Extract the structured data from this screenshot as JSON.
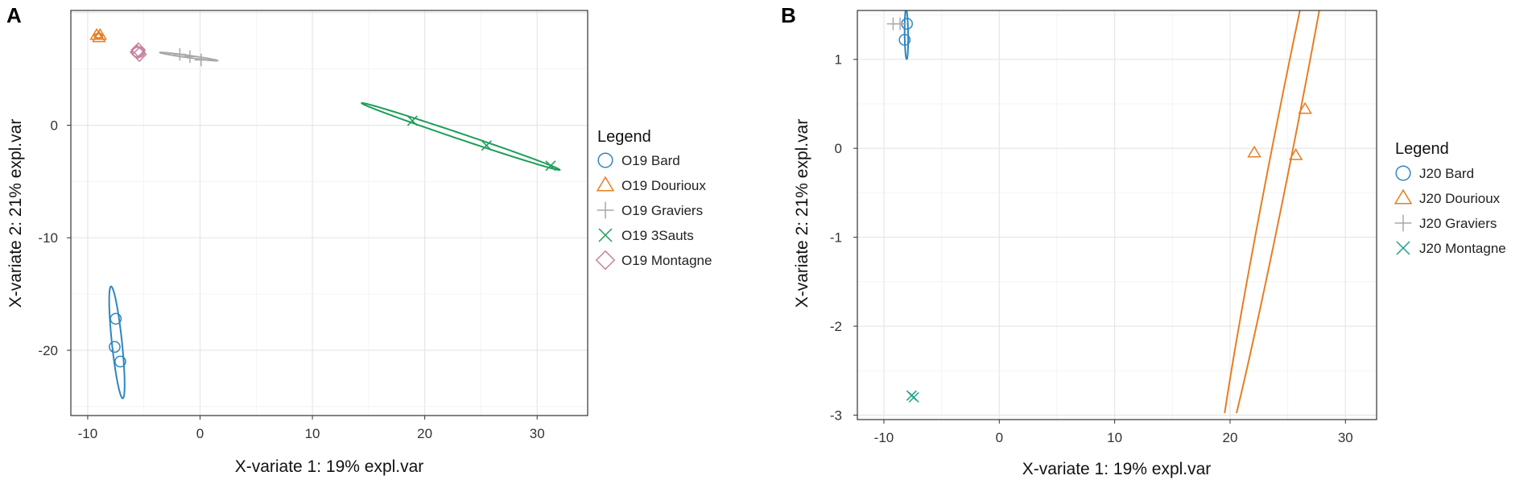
{
  "chart_data": [
    {
      "type": "scatter",
      "panel_label": "A",
      "xlabel": "X-variate 1: 19% expl.var",
      "ylabel": "X-variate 2: 21% expl.var",
      "xlim": [
        -11.5,
        34.5
      ],
      "ylim": [
        -25.8,
        10.2
      ],
      "xticks": [
        -10,
        0,
        10,
        20,
        30
      ],
      "yticks": [
        -20,
        -10,
        0
      ],
      "grid": true,
      "legend_title": "Legend",
      "legend_position": "right",
      "series": [
        {
          "name": "O19 Bard",
          "color": "#2e86c1",
          "marker": "circle",
          "points": [
            [
              -7.5,
              -17.2
            ],
            [
              -7.6,
              -19.7
            ],
            [
              -7.1,
              -21.0
            ]
          ],
          "ellipse": {
            "cx": -7.4,
            "cy": -19.3,
            "rx": 5.0,
            "ry": 0.45,
            "angle_deg": -84
          }
        },
        {
          "name": "O19 Dourioux",
          "color": "#e67e22",
          "marker": "triangle",
          "points": [
            [
              -9.2,
              8.0
            ],
            [
              -9.0,
              7.8
            ],
            [
              -8.9,
              8.0
            ]
          ],
          "ellipse": {
            "cx": -9.05,
            "cy": 7.95,
            "rx": 0.35,
            "ry": 0.2,
            "angle_deg": 0
          }
        },
        {
          "name": "O19 Graviers",
          "color": "#a9a9a9",
          "marker": "plus",
          "points": [
            [
              -1.8,
              6.3
            ],
            [
              -0.9,
              6.1
            ],
            [
              0.1,
              5.8
            ]
          ],
          "ellipse": {
            "cx": -1.0,
            "cy": 6.1,
            "rx": 2.6,
            "ry": 0.1,
            "angle_deg": -8
          }
        },
        {
          "name": "O19 3Sauts",
          "color": "#1e9e5a",
          "marker": "x",
          "points": [
            [
              18.9,
              0.4
            ],
            [
              25.5,
              -1.8
            ],
            [
              31.2,
              -3.6
            ]
          ],
          "ellipse": {
            "cx": 23.2,
            "cy": -1.0,
            "rx": 9.3,
            "ry": 0.26,
            "angle_deg": -18.6
          }
        },
        {
          "name": "O19 Montagne",
          "color": "#c980a0",
          "marker": "diamond",
          "points": [
            [
              -5.6,
              6.5
            ],
            [
              -5.4,
              6.3
            ],
            [
              -5.5,
              6.7
            ]
          ],
          "ellipse": {
            "cx": -5.5,
            "cy": 6.5,
            "rx": 0.55,
            "ry": 0.45,
            "angle_deg": 0
          }
        }
      ]
    },
    {
      "type": "scatter",
      "panel_label": "B",
      "xlabel": "X-variate 1: 19% expl.var",
      "ylabel": "X-variate 2: 21% expl.var",
      "xlim": [
        -12.3,
        32.7
      ],
      "ylim": [
        -3.05,
        1.55
      ],
      "xticks": [
        -10,
        0,
        10,
        20,
        30
      ],
      "yticks": [
        -3,
        -2,
        -1,
        0,
        1
      ],
      "grid": true,
      "legend_title": "Legend",
      "legend_position": "right",
      "series": [
        {
          "name": "J20 Bard",
          "color": "#2e86c1",
          "marker": "circle",
          "points": [
            [
              -8.2,
              1.22
            ],
            [
              -8.0,
              1.4
            ]
          ],
          "ellipse": {
            "cx": -8.05,
            "cy": 1.28,
            "rx": 0.28,
            "ry": 0.15,
            "angle_deg": -82
          }
        },
        {
          "name": "J20 Dourioux",
          "color": "#e67e22",
          "marker": "triangle",
          "points": [
            [
              22.1,
              -0.05
            ],
            [
              25.7,
              -0.08
            ],
            [
              26.5,
              0.44
            ]
          ],
          "ellipse": {
            "cx": 24.7,
            "cy": 0.1,
            "rx": 6.8,
            "ry": 0.5,
            "angle_deg": 33
          }
        },
        {
          "name": "J20 Graviers",
          "color": "#a9a9a9",
          "marker": "plus",
          "points": [
            [
              -9.2,
              1.4
            ],
            [
              -8.6,
              1.4
            ]
          ]
        },
        {
          "name": "J20 Montagne",
          "color": "#20a08a",
          "marker": "x",
          "points": [
            [
              -7.6,
              -2.78
            ],
            [
              -7.4,
              -2.8
            ]
          ]
        }
      ]
    }
  ]
}
